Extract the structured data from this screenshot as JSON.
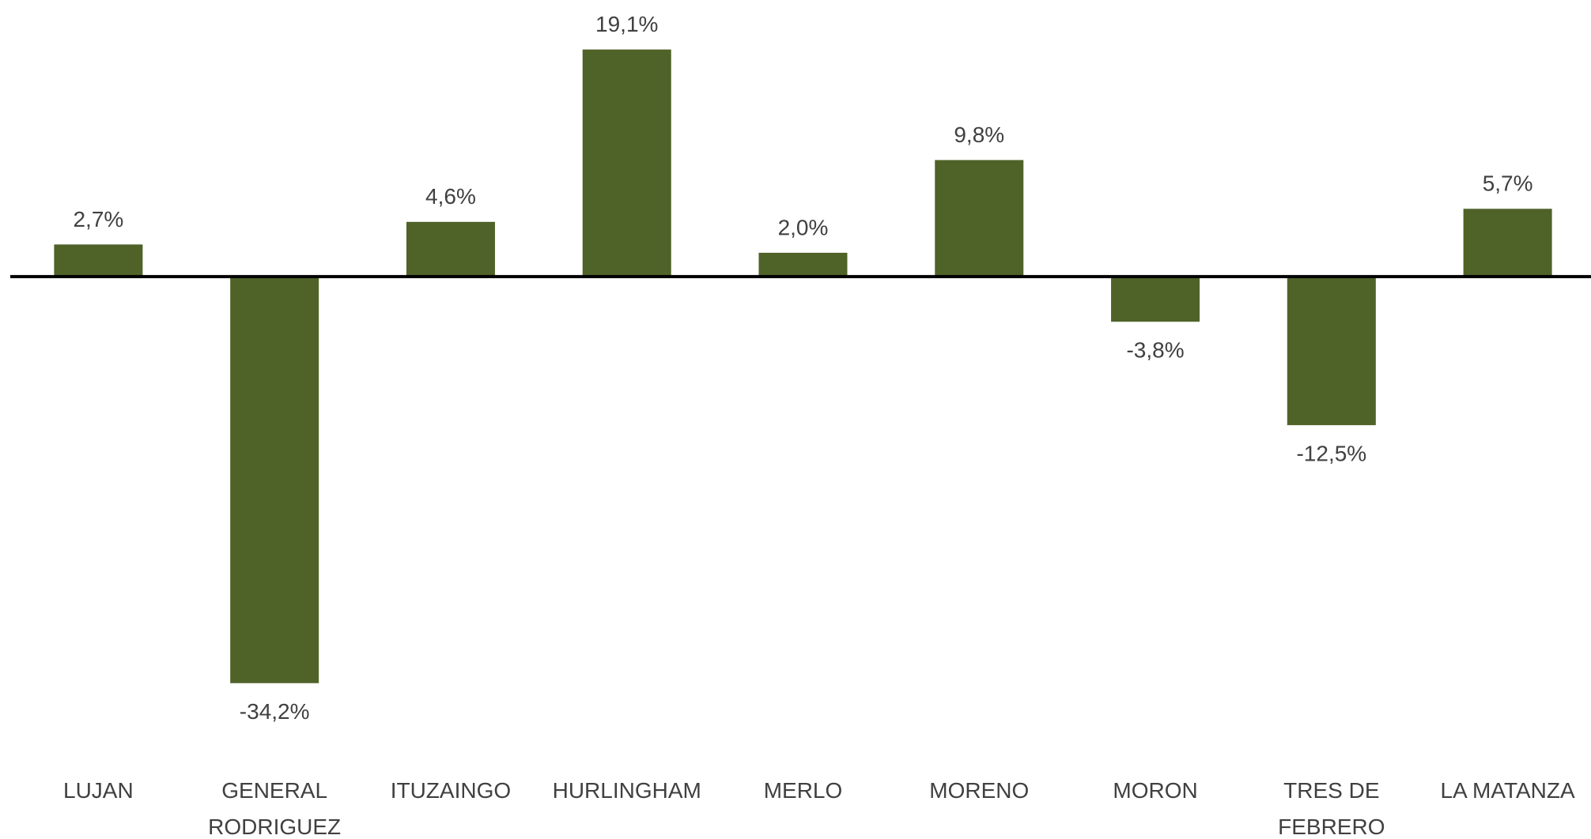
{
  "chart_data": {
    "type": "bar",
    "categories": [
      "LUJAN",
      "GENERAL RODRIGUEZ",
      "ITUZAINGO",
      "HURLINGHAM",
      "MERLO",
      "MORENO",
      "MORON",
      "TRES DE FEBRERO",
      "LA MATANZA"
    ],
    "values": [
      2.7,
      -34.2,
      4.6,
      19.1,
      2.0,
      9.8,
      -3.8,
      -12.5,
      5.7
    ],
    "value_labels": [
      "2,7%",
      "-34,2%",
      "4,6%",
      "19,1%",
      "2,0%",
      "9,8%",
      "-3,8%",
      "-12,5%",
      "5,7%"
    ],
    "color": "#4f6228",
    "ylim": [
      -40,
      22
    ]
  }
}
